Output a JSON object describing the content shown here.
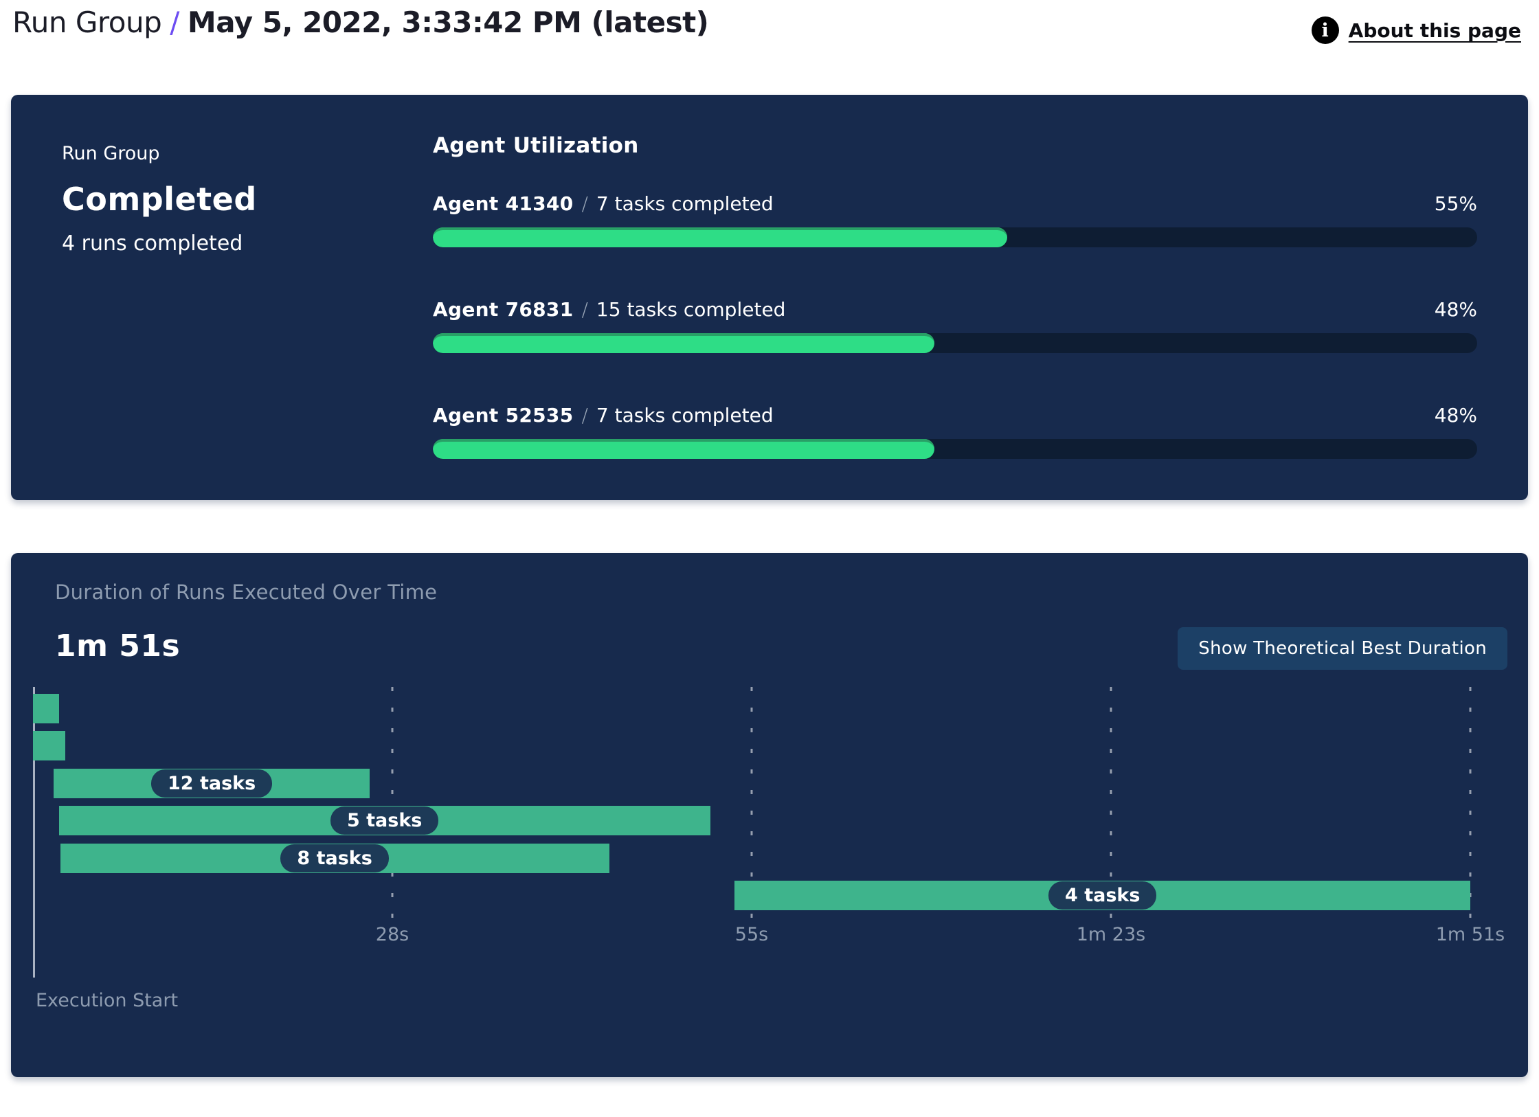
{
  "header": {
    "breadcrumb_root": "Run Group",
    "breadcrumb_separator": "/",
    "breadcrumb_current": "May 5, 2022, 3:33:42 PM (latest)",
    "about_link": "About this page",
    "info_icon_glyph": "i"
  },
  "run_group_panel": {
    "label": "Run Group",
    "status": "Completed",
    "runs_summary": "4 runs completed",
    "separator": "/"
  },
  "duration_panel": {
    "button_label": "Show Theoretical Best Duration"
  },
  "colors": {
    "panel_background": "#172a4d",
    "progress_track": "#0e1d33",
    "progress_green": "#2edd86",
    "gantt_green": "#3eb48c",
    "pill_navy": "#1d3a57",
    "accent_purple": "#6d4df2",
    "muted_text": "#8e9cb0",
    "button_background": "#1c4066"
  },
  "chart_data": [
    {
      "type": "bar",
      "title": "Agent Utilization",
      "categories": [
        "Agent 41340",
        "Agent 76831",
        "Agent 52535"
      ],
      "annotations": [
        "7 tasks completed",
        "15 tasks completed",
        "7 tasks completed"
      ],
      "values": [
        55,
        48,
        48
      ],
      "value_labels": [
        "55%",
        "48%",
        "48%"
      ],
      "unit": "%",
      "xlim": [
        0,
        100
      ]
    },
    {
      "type": "gantt",
      "title": "Duration of Runs Executed Over Time",
      "total_duration_label": "1m 51s",
      "xlabel": "Execution Start",
      "xlim_s": [
        0,
        111
      ],
      "ticks": [
        {
          "label": "28s",
          "s": 27.75
        },
        {
          "label": "55s",
          "s": 55.5
        },
        {
          "label": "1m 23s",
          "s": 83.25
        },
        {
          "label": "1m 51s",
          "s": 111
        }
      ],
      "rows": [
        {
          "label": "",
          "start_s": 0,
          "end_s": 2.0
        },
        {
          "label": "",
          "start_s": 0,
          "end_s": 2.5
        },
        {
          "label": "12 tasks",
          "start_s": 1.6,
          "end_s": 26.0
        },
        {
          "label": "5 tasks",
          "start_s": 2.0,
          "end_s": 52.3
        },
        {
          "label": "8 tasks",
          "start_s": 2.1,
          "end_s": 44.5
        },
        {
          "label": "4 tasks",
          "start_s": 54.2,
          "end_s": 111.0
        }
      ]
    }
  ]
}
